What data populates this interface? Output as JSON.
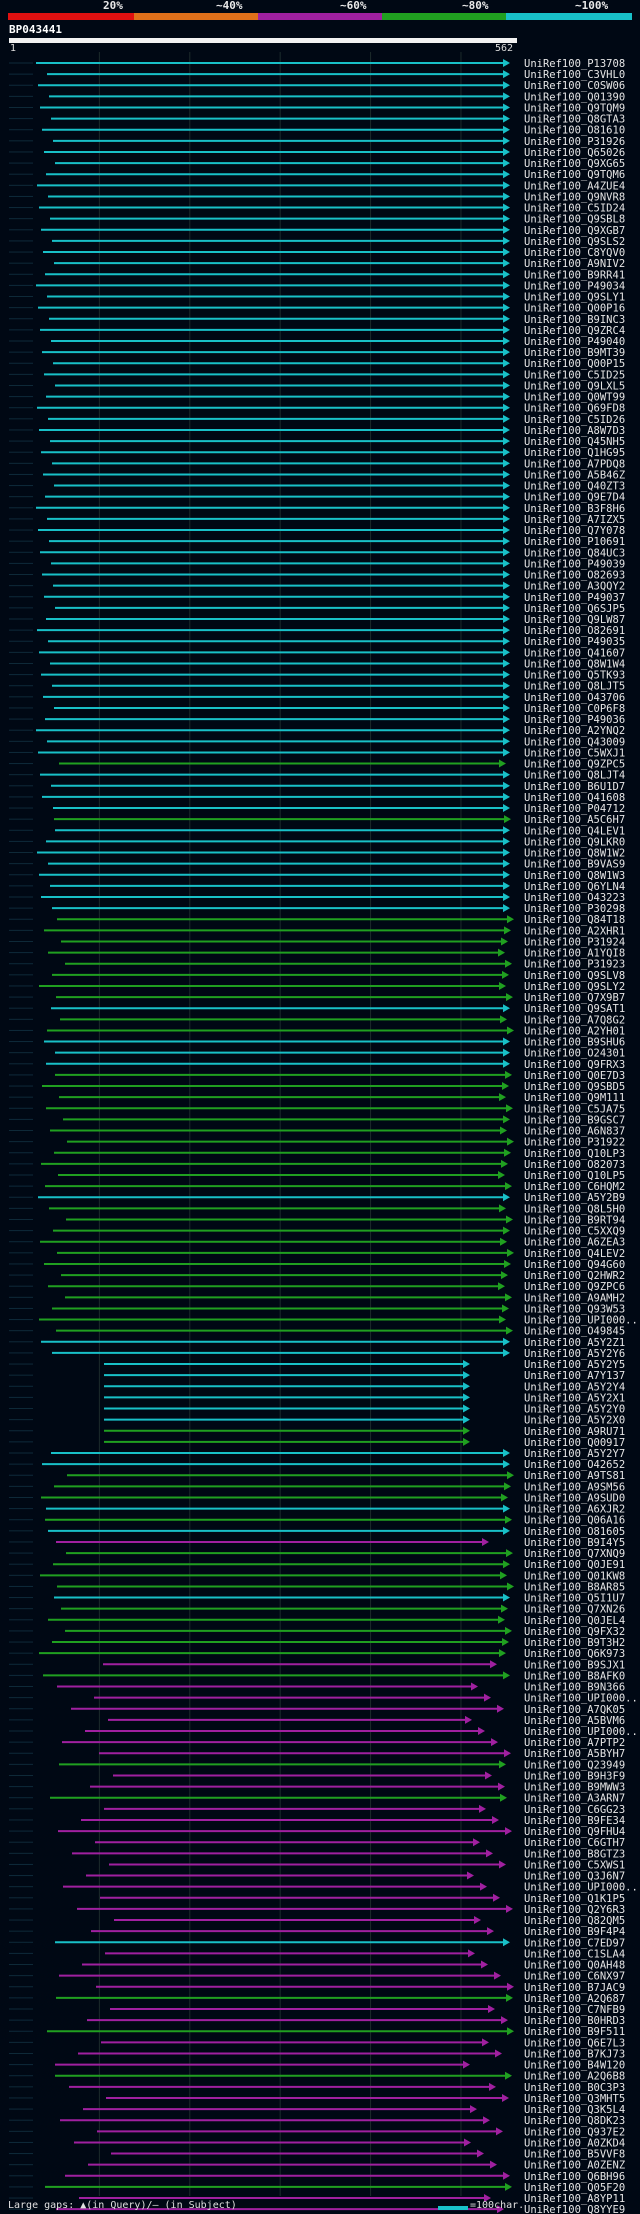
{
  "legend": {
    "labels": [
      "20%",
      "~40%",
      "~60%",
      "~80%",
      "~100%"
    ],
    "colors": [
      "#e01010",
      "#e0701a",
      "#a020a0",
      "#20a020",
      "#18c0c8"
    ]
  },
  "query": {
    "title": "BP043441",
    "start_label": "1",
    "end_label": "562"
  },
  "footer": {
    "left_text": "Large gaps: ▲(in Query)/— (in Subject)",
    "right_text": "=100char."
  },
  "hits": [
    {
      "label": "UniRef100_P13708",
      "c": "cyan"
    },
    {
      "label": "UniRef100_C3VHL0",
      "c": "cyan"
    },
    {
      "label": "UniRef100_C0SW06",
      "c": "cyan"
    },
    {
      "label": "UniRef100_Q01390",
      "c": "cyan"
    },
    {
      "label": "UniRef100_Q9TQM9",
      "c": "cyan"
    },
    {
      "label": "UniRef100_Q8GTA3",
      "c": "cyan"
    },
    {
      "label": "UniRef100_O81610",
      "c": "cyan"
    },
    {
      "label": "UniRef100_P31926",
      "c": "cyan"
    },
    {
      "label": "UniRef100_Q65026",
      "c": "cyan"
    },
    {
      "label": "UniRef100_Q9XG65",
      "c": "cyan"
    },
    {
      "label": "UniRef100_Q9TQM6",
      "c": "cyan"
    },
    {
      "label": "UniRef100_A4ZUE4",
      "c": "cyan"
    },
    {
      "label": "UniRef100_Q9NVR8",
      "c": "cyan"
    },
    {
      "label": "UniRef100_C5ID24",
      "c": "cyan"
    },
    {
      "label": "UniRef100_Q9SBL8",
      "c": "cyan"
    },
    {
      "label": "UniRef100_Q9XGB7",
      "c": "cyan"
    },
    {
      "label": "UniRef100_Q9SLS2",
      "c": "cyan"
    },
    {
      "label": "UniRef100_C8YQV0",
      "c": "cyan"
    },
    {
      "label": "UniRef100_A9NIV2",
      "c": "cyan"
    },
    {
      "label": "UniRef100_B9RR41",
      "c": "cyan"
    },
    {
      "label": "UniRef100_P49034",
      "c": "cyan"
    },
    {
      "label": "UniRef100_Q9SLY1",
      "c": "cyan"
    },
    {
      "label": "UniRef100_Q00P16",
      "c": "cyan"
    },
    {
      "label": "UniRef100_B9INC3",
      "c": "cyan"
    },
    {
      "label": "UniRef100_Q9ZRC4",
      "c": "cyan"
    },
    {
      "label": "UniRef100_P49040",
      "c": "cyan"
    },
    {
      "label": "UniRef100_B9MT39",
      "c": "cyan"
    },
    {
      "label": "UniRef100_Q00P15",
      "c": "cyan"
    },
    {
      "label": "UniRef100_C5ID25",
      "c": "cyan"
    },
    {
      "label": "UniRef100_Q9LXL5",
      "c": "cyan"
    },
    {
      "label": "UniRef100_Q0WT99",
      "c": "cyan"
    },
    {
      "label": "UniRef100_Q69FD8",
      "c": "cyan"
    },
    {
      "label": "UniRef100_C5ID26",
      "c": "cyan"
    },
    {
      "label": "UniRef100_A8W7D3",
      "c": "cyan"
    },
    {
      "label": "UniRef100_Q45NH5",
      "c": "cyan"
    },
    {
      "label": "UniRef100_Q1HG95",
      "c": "cyan"
    },
    {
      "label": "UniRef100_A7PDQ8",
      "c": "cyan"
    },
    {
      "label": "UniRef100_A5B46Z",
      "c": "cyan"
    },
    {
      "label": "UniRef100_Q40ZT3",
      "c": "cyan"
    },
    {
      "label": "UniRef100_Q9E7D4",
      "c": "cyan"
    },
    {
      "label": "UniRef100_B3F8H6",
      "c": "cyan"
    },
    {
      "label": "UniRef100_A7IZX5",
      "c": "cyan"
    },
    {
      "label": "UniRef100_Q7Y078",
      "c": "cyan"
    },
    {
      "label": "UniRef100_P10691",
      "c": "cyan"
    },
    {
      "label": "UniRef100_Q84UC3",
      "c": "cyan"
    },
    {
      "label": "UniRef100_P49039",
      "c": "cyan"
    },
    {
      "label": "UniRef100_O82693",
      "c": "cyan"
    },
    {
      "label": "UniRef100_A3QQY2",
      "c": "cyan"
    },
    {
      "label": "UniRef100_P49037",
      "c": "cyan"
    },
    {
      "label": "UniRef100_Q6SJP5",
      "c": "cyan"
    },
    {
      "label": "UniRef100_Q9LW87",
      "c": "cyan"
    },
    {
      "label": "UniRef100_O82691",
      "c": "cyan"
    },
    {
      "label": "UniRef100_P49035",
      "c": "cyan"
    },
    {
      "label": "UniRef100_Q41607",
      "c": "cyan"
    },
    {
      "label": "UniRef100_Q8W1W4",
      "c": "cyan"
    },
    {
      "label": "UniRef100_Q5TK93",
      "c": "cyan"
    },
    {
      "label": "UniRef100_Q8LJT5",
      "c": "cyan"
    },
    {
      "label": "UniRef100_O43706",
      "c": "cyan"
    },
    {
      "label": "UniRef100_C0P6F8",
      "c": "cyan"
    },
    {
      "label": "UniRef100_P49036",
      "c": "cyan"
    },
    {
      "label": "UniRef100_A2YNQ2",
      "c": "cyan"
    },
    {
      "label": "UniRef100_Q43009",
      "c": "cyan"
    },
    {
      "label": "UniRef100_C5WXJ1",
      "c": "cyan"
    },
    {
      "label": "UniRef100_Q9ZPC5",
      "c": "green"
    },
    {
      "label": "UniRef100_Q8LJT4",
      "c": "cyan"
    },
    {
      "label": "UniRef100_B6U1D7",
      "c": "cyan"
    },
    {
      "label": "UniRef100_Q41608",
      "c": "cyan"
    },
    {
      "label": "UniRef100_P04712",
      "c": "cyan"
    },
    {
      "label": "UniRef100_A5C6H7",
      "c": "green"
    },
    {
      "label": "UniRef100_Q4LEV1",
      "c": "cyan"
    },
    {
      "label": "UniRef100_Q9LKR0",
      "c": "cyan"
    },
    {
      "label": "UniRef100_Q8W1W2",
      "c": "cyan"
    },
    {
      "label": "UniRef100_B9VAS9",
      "c": "cyan"
    },
    {
      "label": "UniRef100_Q8W1W3",
      "c": "cyan"
    },
    {
      "label": "UniRef100_Q6YLN4",
      "c": "cyan"
    },
    {
      "label": "UniRef100_O43223",
      "c": "cyan"
    },
    {
      "label": "UniRef100_P30298",
      "c": "cyan"
    },
    {
      "label": "UniRef100_Q84T18",
      "c": "green"
    },
    {
      "label": "UniRef100_A2XHR1",
      "c": "green"
    },
    {
      "label": "UniRef100_P31924",
      "c": "green"
    },
    {
      "label": "UniRef100_A1YQI8",
      "c": "green"
    },
    {
      "label": "UniRef100_P31923",
      "c": "green"
    },
    {
      "label": "UniRef100_Q9SLV8",
      "c": "green"
    },
    {
      "label": "UniRef100_Q9SLY2",
      "c": "green"
    },
    {
      "label": "UniRef100_Q7X9B7",
      "c": "green"
    },
    {
      "label": "UniRef100_Q9SAT1",
      "c": "cyan"
    },
    {
      "label": "UniRef100_A7Q8G2",
      "c": "green"
    },
    {
      "label": "UniRef100_A2YH01",
      "c": "green"
    },
    {
      "label": "UniRef100_B9SHU6",
      "c": "cyan"
    },
    {
      "label": "UniRef100_O24301",
      "c": "cyan"
    },
    {
      "label": "UniRef100_Q9FRX3",
      "c": "cyan"
    },
    {
      "label": "UniRef100_Q0E7D3",
      "c": "green"
    },
    {
      "label": "UniRef100_Q9SBD5",
      "c": "green"
    },
    {
      "label": "UniRef100_Q9M111",
      "c": "green"
    },
    {
      "label": "UniRef100_C5JA75",
      "c": "green"
    },
    {
      "label": "UniRef100_B9GSC7",
      "c": "green"
    },
    {
      "label": "UniRef100_A6N837",
      "c": "green"
    },
    {
      "label": "UniRef100_P31922",
      "c": "green"
    },
    {
      "label": "UniRef100_Q10LP3",
      "c": "green"
    },
    {
      "label": "UniRef100_O82073",
      "c": "green"
    },
    {
      "label": "UniRef100_Q10LP5",
      "c": "green"
    },
    {
      "label": "UniRef100_C6HQM2",
      "c": "green"
    },
    {
      "label": "UniRef100_A5Y2B9",
      "c": "cyan"
    },
    {
      "label": "UniRef100_Q8L5H0",
      "c": "green"
    },
    {
      "label": "UniRef100_B9RT94",
      "c": "green"
    },
    {
      "label": "UniRef100_C5XXQ9",
      "c": "green"
    },
    {
      "label": "UniRef100_A6ZEA3",
      "c": "green"
    },
    {
      "label": "UniRef100_Q4LEV2",
      "c": "green"
    },
    {
      "label": "UniRef100_Q94G60",
      "c": "green"
    },
    {
      "label": "UniRef100_Q2HWR2",
      "c": "green"
    },
    {
      "label": "UniRef100_Q9ZPC6",
      "c": "green"
    },
    {
      "label": "UniRef100_A9AMH2",
      "c": "green"
    },
    {
      "label": "UniRef100_Q93W53",
      "c": "green"
    },
    {
      "label": "UniRef100_UPI000...",
      "c": "green"
    },
    {
      "label": "UniRef100_O49845",
      "c": "green"
    },
    {
      "label": "UniRef100_A5Y2Z1",
      "c": "cyan"
    },
    {
      "label": "UniRef100_A5Y2Y6",
      "c": "cyan"
    },
    {
      "label": "UniRef100_A5Y2Y5",
      "c": "cyan"
    },
    {
      "label": "UniRef100_A7Y137",
      "c": "cyan"
    },
    {
      "label": "UniRef100_A5Y2Y4",
      "c": "cyan"
    },
    {
      "label": "UniRef100_A5Y2X1",
      "c": "cyan"
    },
    {
      "label": "UniRef100_A5Y2Y0",
      "c": "cyan"
    },
    {
      "label": "UniRef100_A5Y2X0",
      "c": "cyan"
    },
    {
      "label": "UniRef100_A9RU71",
      "c": "green"
    },
    {
      "label": "UniRef100_Q00917",
      "c": "green"
    },
    {
      "label": "UniRef100_A5Y2Y7",
      "c": "cyan"
    },
    {
      "label": "UniRef100_O42652",
      "c": "cyan"
    },
    {
      "label": "UniRef100_A9TS81",
      "c": "green"
    },
    {
      "label": "UniRef100_A9SM56",
      "c": "green"
    },
    {
      "label": "UniRef100_A9SUD0",
      "c": "green"
    },
    {
      "label": "UniRef100_A6XJR2",
      "c": "cyan"
    },
    {
      "label": "UniRef100_Q06A16",
      "c": "green"
    },
    {
      "label": "UniRef100_O81605",
      "c": "cyan"
    },
    {
      "label": "UniRef100_B9I4Y5",
      "c": "magenta"
    },
    {
      "label": "UniRef100_Q7XNQ9",
      "c": "green"
    },
    {
      "label": "UniRef100_Q0JE91",
      "c": "green"
    },
    {
      "label": "UniRef100_Q01KW8",
      "c": "green"
    },
    {
      "label": "UniRef100_B8AR85",
      "c": "green"
    },
    {
      "label": "UniRef100_Q5I1U7",
      "c": "cyan"
    },
    {
      "label": "UniRef100_Q7XN26",
      "c": "green"
    },
    {
      "label": "UniRef100_Q0JEL4",
      "c": "green"
    },
    {
      "label": "UniRef100_Q9FX32",
      "c": "green"
    },
    {
      "label": "UniRef100_B9T3H2",
      "c": "green"
    },
    {
      "label": "UniRef100_Q6K973",
      "c": "green"
    },
    {
      "label": "UniRef100_B9SJX1",
      "c": "magenta"
    },
    {
      "label": "UniRef100_B8AFK0",
      "c": "green"
    },
    {
      "label": "UniRef100_B9N366",
      "c": "magenta"
    },
    {
      "label": "UniRef100_UPI000...",
      "c": "magenta"
    },
    {
      "label": "UniRef100_A7QK05",
      "c": "magenta"
    },
    {
      "label": "UniRef100_A5BVM6",
      "c": "magenta"
    },
    {
      "label": "UniRef100_UPI000...",
      "c": "magenta"
    },
    {
      "label": "UniRef100_A7PTP2",
      "c": "magenta"
    },
    {
      "label": "UniRef100_A5BYH7",
      "c": "magenta"
    },
    {
      "label": "UniRef100_Q23949",
      "c": "green"
    },
    {
      "label": "UniRef100_B9H3F9",
      "c": "magenta"
    },
    {
      "label": "UniRef100_B9MWW3",
      "c": "magenta"
    },
    {
      "label": "UniRef100_A3ARN7",
      "c": "green"
    },
    {
      "label": "UniRef100_C6GG23",
      "c": "magenta"
    },
    {
      "label": "UniRef100_B9FE34",
      "c": "magenta"
    },
    {
      "label": "UniRef100_Q9FHU4",
      "c": "magenta"
    },
    {
      "label": "UniRef100_C6GTH7",
      "c": "magenta"
    },
    {
      "label": "UniRef100_B8GTZ3",
      "c": "magenta"
    },
    {
      "label": "UniRef100_C5XWS1",
      "c": "magenta"
    },
    {
      "label": "UniRef100_Q3J6N7",
      "c": "magenta"
    },
    {
      "label": "UniRef100_UPI000...",
      "c": "magenta"
    },
    {
      "label": "UniRef100_Q1K1P5",
      "c": "magenta"
    },
    {
      "label": "UniRef100_Q2Y6R3",
      "c": "magenta"
    },
    {
      "label": "UniRef100_Q82QM5",
      "c": "magenta"
    },
    {
      "label": "UniRef100_B9F4P4",
      "c": "magenta"
    },
    {
      "label": "UniRef100_C7ED97",
      "c": "cyan"
    },
    {
      "label": "UniRef100_C1SLA4",
      "c": "magenta"
    },
    {
      "label": "UniRef100_Q0AH48",
      "c": "magenta"
    },
    {
      "label": "UniRef100_C6NX97",
      "c": "magenta"
    },
    {
      "label": "UniRef100_B7JAC9",
      "c": "magenta"
    },
    {
      "label": "UniRef100_A2Q687",
      "c": "green"
    },
    {
      "label": "UniRef100_C7NFB9",
      "c": "magenta"
    },
    {
      "label": "UniRef100_B0HRD3",
      "c": "magenta"
    },
    {
      "label": "UniRef100_B9F511",
      "c": "green"
    },
    {
      "label": "UniRef100_Q6E7L3",
      "c": "magenta"
    },
    {
      "label": "UniRef100_B7KJ73",
      "c": "magenta"
    },
    {
      "label": "UniRef100_B4W120",
      "c": "magenta"
    },
    {
      "label": "UniRef100_A2Q6B8",
      "c": "green"
    },
    {
      "label": "UniRef100_B0C3P3",
      "c": "magenta"
    },
    {
      "label": "UniRef100_Q3MHT5",
      "c": "magenta"
    },
    {
      "label": "UniRef100_Q3K5L4",
      "c": "magenta"
    },
    {
      "label": "UniRef100_Q8DK23",
      "c": "magenta"
    },
    {
      "label": "UniRef100_Q937E2",
      "c": "magenta"
    },
    {
      "label": "UniRef100_A0ZKD4",
      "c": "magenta"
    },
    {
      "label": "UniRef100_B5VVF8",
      "c": "magenta"
    },
    {
      "label": "UniRef100_A0ZENZ",
      "c": "magenta"
    },
    {
      "label": "UniRef100_Q6BH96",
      "c": "magenta"
    },
    {
      "label": "UniRef100_Q05F20",
      "c": "green"
    },
    {
      "label": "UniRef100_A8YP11",
      "c": "magenta"
    },
    {
      "label": "UniRef100_Q8YYE9",
      "c": "magenta"
    }
  ]
}
